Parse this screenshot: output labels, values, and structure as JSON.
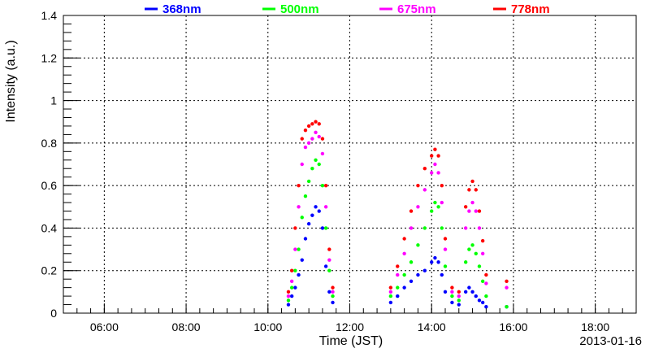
{
  "chart_data": {
    "type": "scatter",
    "title": "",
    "xlabel": "Time (JST)",
    "ylabel": "Intensity (a.u.)",
    "date": "2013-01-16",
    "xlim": [
      "05:00",
      "19:00"
    ],
    "ylim": [
      0,
      1.4
    ],
    "x_ticks": [
      "06:00",
      "08:00",
      "10:00",
      "12:00",
      "14:00",
      "16:00",
      "18:00"
    ],
    "y_ticks": [
      "0",
      "0.2",
      "0.4",
      "0.6",
      "0.8",
      "1",
      "1.2",
      "1.4"
    ],
    "grid": true,
    "legend_position": "top",
    "series": [
      {
        "name": "368nm",
        "color": "#0000ff",
        "points": [
          [
            "10:30",
            0.04
          ],
          [
            "10:35",
            0.08
          ],
          [
            "10:40",
            0.12
          ],
          [
            "10:45",
            0.18
          ],
          [
            "10:50",
            0.25
          ],
          [
            "10:55",
            0.35
          ],
          [
            "11:00",
            0.42
          ],
          [
            "11:05",
            0.46
          ],
          [
            "11:10",
            0.5
          ],
          [
            "11:15",
            0.48
          ],
          [
            "11:20",
            0.4
          ],
          [
            "11:25",
            0.22
          ],
          [
            "11:30",
            0.1
          ],
          [
            "11:35",
            0.05
          ],
          [
            "13:00",
            0.05
          ],
          [
            "13:10",
            0.08
          ],
          [
            "13:20",
            0.12
          ],
          [
            "13:30",
            0.15
          ],
          [
            "13:40",
            0.18
          ],
          [
            "13:50",
            0.2
          ],
          [
            "14:00",
            0.24
          ],
          [
            "14:05",
            0.26
          ],
          [
            "14:10",
            0.24
          ],
          [
            "14:15",
            0.18
          ],
          [
            "14:20",
            0.1
          ],
          [
            "14:30",
            0.05
          ],
          [
            "14:40",
            0.04
          ],
          [
            "14:50",
            0.1
          ],
          [
            "14:55",
            0.12
          ],
          [
            "15:00",
            0.1
          ],
          [
            "15:05",
            0.08
          ],
          [
            "15:10",
            0.06
          ],
          [
            "15:15",
            0.05
          ],
          [
            "15:20",
            0.03
          ],
          [
            "15:50",
            0.03
          ]
        ]
      },
      {
        "name": "500nm",
        "color": "#00ff00",
        "points": [
          [
            "10:30",
            0.06
          ],
          [
            "10:35",
            0.12
          ],
          [
            "10:40",
            0.2
          ],
          [
            "10:45",
            0.3
          ],
          [
            "10:50",
            0.45
          ],
          [
            "10:55",
            0.55
          ],
          [
            "11:00",
            0.62
          ],
          [
            "11:05",
            0.68
          ],
          [
            "11:10",
            0.72
          ],
          [
            "11:15",
            0.7
          ],
          [
            "11:20",
            0.6
          ],
          [
            "11:25",
            0.4
          ],
          [
            "11:30",
            0.2
          ],
          [
            "11:35",
            0.08
          ],
          [
            "13:00",
            0.08
          ],
          [
            "13:10",
            0.12
          ],
          [
            "13:20",
            0.18
          ],
          [
            "13:30",
            0.24
          ],
          [
            "13:40",
            0.32
          ],
          [
            "13:50",
            0.4
          ],
          [
            "14:00",
            0.48
          ],
          [
            "14:05",
            0.52
          ],
          [
            "14:10",
            0.5
          ],
          [
            "14:15",
            0.4
          ],
          [
            "14:20",
            0.22
          ],
          [
            "14:30",
            0.08
          ],
          [
            "14:40",
            0.06
          ],
          [
            "14:50",
            0.24
          ],
          [
            "14:55",
            0.3
          ],
          [
            "15:00",
            0.32
          ],
          [
            "15:05",
            0.28
          ],
          [
            "15:10",
            0.22
          ],
          [
            "15:15",
            0.15
          ],
          [
            "15:20",
            0.08
          ],
          [
            "15:50",
            0.03
          ]
        ]
      },
      {
        "name": "675nm",
        "color": "#ff00ff",
        "points": [
          [
            "10:30",
            0.08
          ],
          [
            "10:35",
            0.15
          ],
          [
            "10:40",
            0.3
          ],
          [
            "10:45",
            0.5
          ],
          [
            "10:50",
            0.7
          ],
          [
            "10:55",
            0.78
          ],
          [
            "11:00",
            0.8
          ],
          [
            "11:05",
            0.82
          ],
          [
            "11:10",
            0.85
          ],
          [
            "11:15",
            0.83
          ],
          [
            "11:20",
            0.75
          ],
          [
            "11:25",
            0.5
          ],
          [
            "11:30",
            0.25
          ],
          [
            "11:35",
            0.1
          ],
          [
            "13:00",
            0.1
          ],
          [
            "13:10",
            0.18
          ],
          [
            "13:20",
            0.28
          ],
          [
            "13:30",
            0.4
          ],
          [
            "13:40",
            0.5
          ],
          [
            "13:50",
            0.58
          ],
          [
            "14:00",
            0.66
          ],
          [
            "14:05",
            0.7
          ],
          [
            "14:10",
            0.66
          ],
          [
            "14:15",
            0.52
          ],
          [
            "14:20",
            0.3
          ],
          [
            "14:30",
            0.1
          ],
          [
            "14:40",
            0.08
          ],
          [
            "14:50",
            0.4
          ],
          [
            "14:55",
            0.48
          ],
          [
            "15:00",
            0.52
          ],
          [
            "15:05",
            0.48
          ],
          [
            "15:10",
            0.4
          ],
          [
            "15:15",
            0.28
          ],
          [
            "15:20",
            0.14
          ],
          [
            "15:50",
            0.12
          ]
        ]
      },
      {
        "name": "778nm",
        "color": "#ff0000",
        "points": [
          [
            "10:30",
            0.1
          ],
          [
            "10:35",
            0.2
          ],
          [
            "10:40",
            0.4
          ],
          [
            "10:45",
            0.6
          ],
          [
            "10:50",
            0.82
          ],
          [
            "10:55",
            0.86
          ],
          [
            "11:00",
            0.88
          ],
          [
            "11:05",
            0.89
          ],
          [
            "11:10",
            0.9
          ],
          [
            "11:15",
            0.89
          ],
          [
            "11:20",
            0.82
          ],
          [
            "11:25",
            0.6
          ],
          [
            "11:30",
            0.3
          ],
          [
            "11:35",
            0.12
          ],
          [
            "13:00",
            0.12
          ],
          [
            "13:10",
            0.22
          ],
          [
            "13:20",
            0.35
          ],
          [
            "13:30",
            0.48
          ],
          [
            "13:40",
            0.6
          ],
          [
            "13:50",
            0.68
          ],
          [
            "14:00",
            0.74
          ],
          [
            "14:05",
            0.77
          ],
          [
            "14:10",
            0.74
          ],
          [
            "14:15",
            0.6
          ],
          [
            "14:20",
            0.35
          ],
          [
            "14:30",
            0.12
          ],
          [
            "14:40",
            0.1
          ],
          [
            "14:50",
            0.5
          ],
          [
            "14:55",
            0.58
          ],
          [
            "15:00",
            0.62
          ],
          [
            "15:05",
            0.58
          ],
          [
            "15:10",
            0.48
          ],
          [
            "15:15",
            0.34
          ],
          [
            "15:20",
            0.18
          ],
          [
            "15:50",
            0.15
          ]
        ]
      }
    ]
  }
}
